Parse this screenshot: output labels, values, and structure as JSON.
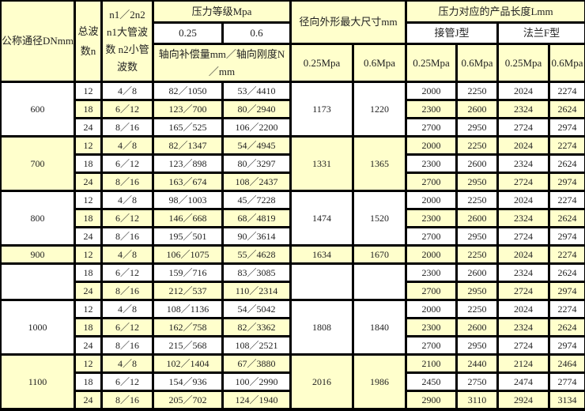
{
  "header": {
    "dn": "公称通径DNmm",
    "n": "总波数n",
    "n12": "n1／2n2 n1大管波数 n2小管波数",
    "pressure_grade": "压力等级Mpa",
    "p025": "0.25",
    "p06": "0.6",
    "comp": "轴向补偿量mm／轴向刚度N／mm",
    "outer": "径向外形最大尺寸mm",
    "outer_025": "0.25Mpa",
    "outer_06": "0.6Mpa",
    "length": "压力对应的产品长度Lmm",
    "j_type": "接管J型",
    "f_type": "法兰F型",
    "j_025": "0.25Mpa",
    "j_06": "0.6Mpa",
    "f_025": "0.25Mpa",
    "f_06": "0.6Mpa"
  },
  "colors": {
    "highlight": "#ffffcc",
    "plain": "#ffffff",
    "border": "#000000"
  },
  "groups": [
    {
      "dn": "600",
      "o025": "1173",
      "o06": "1220",
      "hl": false,
      "rows": [
        {
          "n": "12",
          "n12": "4／8",
          "s025": "82／1050",
          "s06": "53／4410",
          "j025": "2000",
          "j06": "2250",
          "f025": "2024",
          "f06": "2274",
          "hl": false
        },
        {
          "n": "18",
          "n12": "6／12",
          "s025": "123／700",
          "s06": "80／2940",
          "j025": "2300",
          "j06": "2600",
          "f025": "2324",
          "f06": "2624",
          "hl": true
        },
        {
          "n": "24",
          "n12": "8／16",
          "s025": "165／525",
          "s06": "106／2200",
          "j025": "2700",
          "j06": "2950",
          "f025": "2724",
          "f06": "2974",
          "hl": false
        }
      ]
    },
    {
      "dn": "700",
      "o025": "1331",
      "o06": "1365",
      "hl": true,
      "rows": [
        {
          "n": "12",
          "n12": "4／8",
          "s025": "82／1347",
          "s06": "54／4945",
          "j025": "2000",
          "j06": "2250",
          "f025": "2024",
          "f06": "2274",
          "hl": true
        },
        {
          "n": "18",
          "n12": "6／12",
          "s025": "123／898",
          "s06": "80／3297",
          "j025": "2300",
          "j06": "2600",
          "f025": "2324",
          "f06": "2624",
          "hl": false
        },
        {
          "n": "24",
          "n12": "8／16",
          "s025": "163／674",
          "s06": "108／2437",
          "j025": "2700",
          "j06": "2950",
          "f025": "2724",
          "f06": "2974",
          "hl": true
        }
      ]
    },
    {
      "dn": "800",
      "o025": "1474",
      "o06": "1520",
      "hl": false,
      "rows": [
        {
          "n": "12",
          "n12": "4／8",
          "s025": "98／1003",
          "s06": "45／7228",
          "j025": "2000",
          "j06": "2250",
          "f025": "2024",
          "f06": "2274",
          "hl": false
        },
        {
          "n": "18",
          "n12": "6／12",
          "s025": "146／668",
          "s06": "68／4819",
          "j025": "2300",
          "j06": "2600",
          "f025": "2324",
          "f06": "2624",
          "hl": true
        },
        {
          "n": "24",
          "n12": "8／16",
          "s025": "195／501",
          "s06": "90／3614",
          "j025": "2700",
          "j06": "2950",
          "f025": "2724",
          "f06": "2974",
          "hl": false
        }
      ]
    },
    {
      "dn": "900",
      "o025": "1634",
      "o06": "1670",
      "hl": true,
      "rows": [
        {
          "n": "12",
          "n12": "4／8",
          "s025": "106／1075",
          "s06": "55／4628",
          "j025": "2000",
          "j06": "2250",
          "f025": "2024",
          "f06": "2274",
          "hl": true
        }
      ]
    },
    {
      "dn": "",
      "o025": "",
      "o06": "",
      "hl": false,
      "rows": [
        {
          "n": "18",
          "n12": "6／12",
          "s025": "159／716",
          "s06": "83／3085",
          "j025": "2300",
          "j06": "2600",
          "f025": "2324",
          "f06": "2624",
          "hl": false
        },
        {
          "n": "24",
          "n12": "8／16",
          "s025": "212／537",
          "s06": "110／2314",
          "j025": "2700",
          "j06": "2950",
          "f025": "2724",
          "f06": "2974",
          "hl": true
        }
      ]
    },
    {
      "dn": "1000",
      "o025": "1808",
      "o06": "1840",
      "hl": false,
      "rows": [
        {
          "n": "12",
          "n12": "4／8",
          "s025": "108／1136",
          "s06": "54／5042",
          "j025": "2000",
          "j06": "2250",
          "f025": "2024",
          "f06": "2274",
          "hl": false
        },
        {
          "n": "18",
          "n12": "6／12",
          "s025": "162／758",
          "s06": "82／3362",
          "j025": "2300",
          "j06": "2600",
          "f025": "2324",
          "f06": "2624",
          "hl": true
        },
        {
          "n": "24",
          "n12": "8／16",
          "s025": "215／568",
          "s06": "108／2521",
          "j025": "2700",
          "j06": "2950",
          "f025": "2724",
          "f06": "2974",
          "hl": false
        }
      ]
    },
    {
      "dn": "1100",
      "o025": "2016",
      "o06": "1986",
      "hl": true,
      "rows": [
        {
          "n": "12",
          "n12": "4／8",
          "s025": "102／1404",
          "s06": "67／3880",
          "j025": "2100",
          "j06": "2440",
          "f025": "2124",
          "f06": "2464",
          "hl": true
        },
        {
          "n": "18",
          "n12": "6／12",
          "s025": "154／936",
          "s06": "100／2990",
          "j025": "2450",
          "j06": "2750",
          "f025": "2474",
          "f06": "2774",
          "hl": false
        },
        {
          "n": "24",
          "n12": "8／16",
          "s025": "205／702",
          "s06": "124／1940",
          "j025": "2900",
          "j06": "3110",
          "f025": "2924",
          "f06": "3134",
          "hl": true
        }
      ]
    }
  ]
}
